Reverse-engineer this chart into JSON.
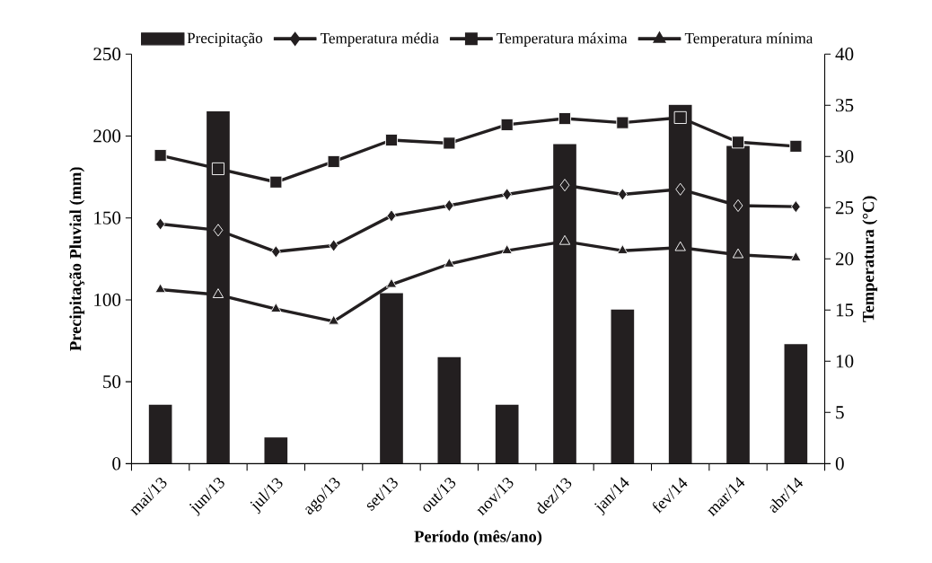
{
  "chart_data": {
    "type": "bar",
    "xlabel": "Período (mês/ano)",
    "ylabel": "Precipitação Pluvial (mm)",
    "y2label": "Temperatura (°C)",
    "categories": [
      "mai/13",
      "jun/13",
      "jul/13",
      "ago/13",
      "set/13",
      "out/13",
      "nov/13",
      "dez/13",
      "jan/14",
      "fev/14",
      "mar/14",
      "abr/14"
    ],
    "series": [
      {
        "name": "Precipitação",
        "color": "#231f20",
        "values": [
          36,
          215,
          16,
          0,
          104,
          65,
          36,
          195,
          94,
          219,
          194,
          73
        ]
      },
      {
        "name": "Temperatura média",
        "type": "line",
        "axis": "y2",
        "color": "#231f20",
        "marker": "diamond",
        "values": [
          23.4,
          22.8,
          20.7,
          21.3,
          24.2,
          25.2,
          26.3,
          27.2,
          26.3,
          26.8,
          25.2,
          25.1
        ]
      },
      {
        "name": "Temperatura máxima",
        "type": "line",
        "axis": "y2",
        "color": "#231f20",
        "marker": "square",
        "values": [
          30.1,
          28.8,
          27.5,
          29.5,
          31.6,
          31.3,
          33.1,
          33.7,
          33.3,
          33.8,
          31.4,
          31.0
        ]
      },
      {
        "name": "Temperatura mínima",
        "type": "line",
        "axis": "y2",
        "color": "#231f20",
        "marker": "triangle",
        "values": [
          17.0,
          16.5,
          15.1,
          13.9,
          17.5,
          19.5,
          20.8,
          21.7,
          20.8,
          21.1,
          20.4,
          20.1
        ]
      }
    ],
    "ylim": [
      0,
      250
    ],
    "yticks": [
      0,
      50,
      100,
      150,
      200,
      250
    ],
    "y2lim": [
      0,
      40
    ],
    "y2ticks": [
      0,
      5,
      10,
      15,
      20,
      25,
      30,
      35,
      40
    ],
    "legend": "top",
    "grid": false
  }
}
